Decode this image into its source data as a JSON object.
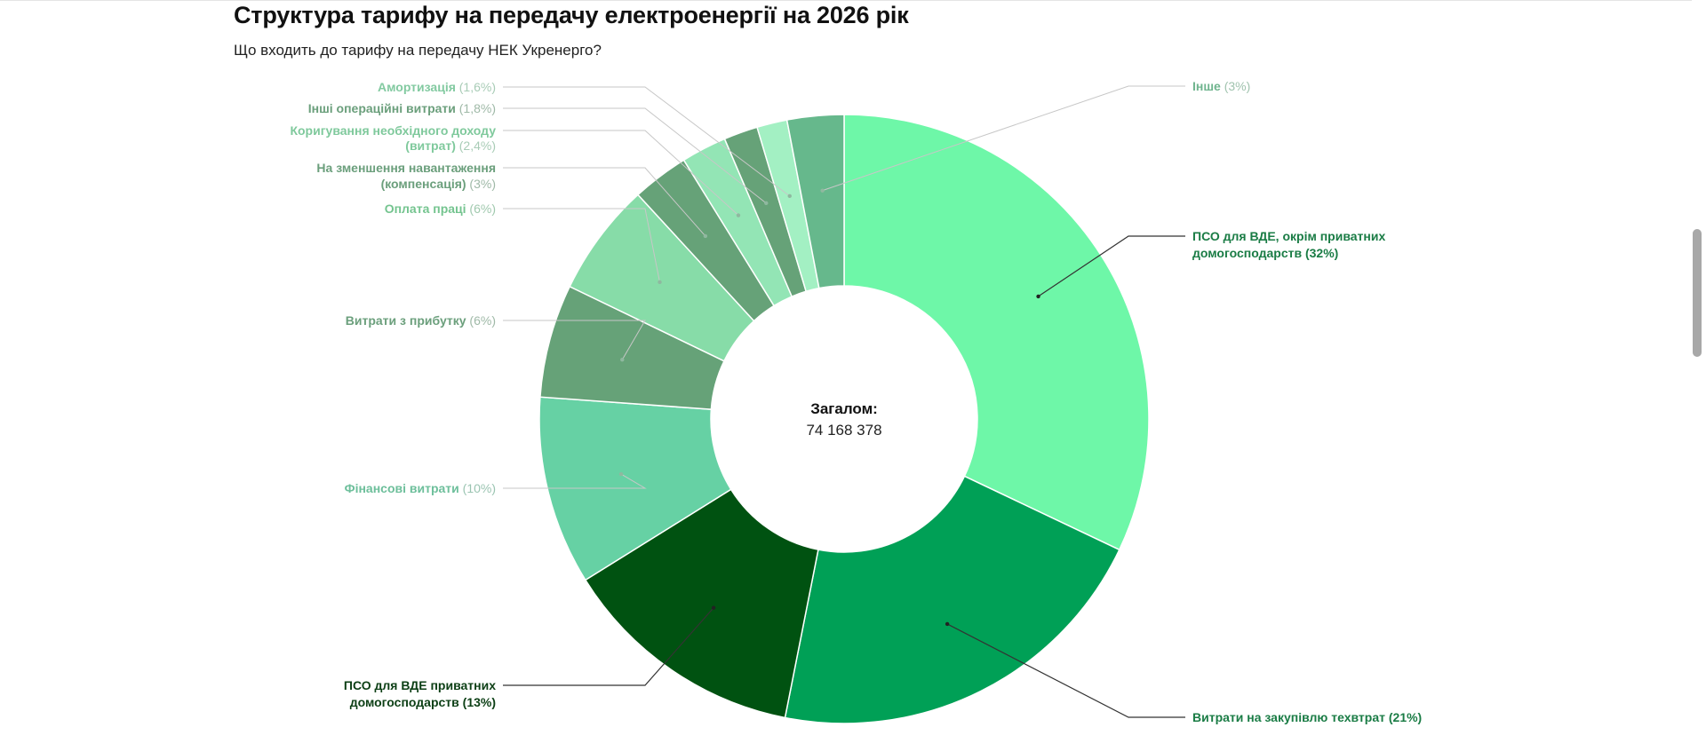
{
  "header": {
    "title": "Структура тарифу на передачу електроенергії на 2026 рік",
    "subtitle": "Що входить до тарифу на передачу НЕК Укренерго?"
  },
  "center": {
    "label": "Загалом:",
    "value": "74 168 378"
  },
  "chart_data": {
    "type": "pie",
    "donut": true,
    "total_label": "Загалом:",
    "total": 74168378,
    "slices": [
      {
        "name": "ПСО для ВДЕ, окрім приватних домогосподарств",
        "pct_text": "(32%)",
        "value": 32,
        "color": "#6ef7a8"
      },
      {
        "name": "Витрати на закупівлю техвтрат",
        "pct_text": "(21%)",
        "value": 21,
        "color": "#00a056"
      },
      {
        "name": "ПСО для ВДЕ приватних домогосподарств",
        "pct_text": "(13%)",
        "value": 13,
        "color": "#005211"
      },
      {
        "name": "Фінансові витрати",
        "pct_text": "(10%)",
        "value": 10,
        "color": "#66d1a4"
      },
      {
        "name": "Витрати з прибутку",
        "pct_text": "(6%)",
        "value": 6,
        "color": "#66a278"
      },
      {
        "name": "Оплата праці",
        "pct_text": "(6%)",
        "value": 6,
        "color": "#87dca8"
      },
      {
        "name": "На зменшення навантаження (компенсація)",
        "pct_text": "(3%)",
        "value": 3,
        "color": "#66a278"
      },
      {
        "name": "Коригування необхідного доходу (витрат)",
        "pct_text": "(2,4%)",
        "value": 2.4,
        "color": "#93e5b5"
      },
      {
        "name": "Інші операційні витрати",
        "pct_text": "(1,8%)",
        "value": 1.8,
        "color": "#66a278"
      },
      {
        "name": "Амортизація",
        "pct_text": "(1,6%)",
        "value": 1.6,
        "color": "#a3f0c3"
      },
      {
        "name": "Інше",
        "pct_text": "(3%)",
        "value": 3,
        "color": "#66b88c"
      }
    ]
  }
}
